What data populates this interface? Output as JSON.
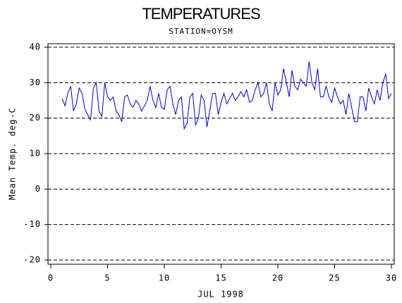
{
  "chart_data": {
    "type": "line",
    "title": "TEMPERATURES",
    "subtitle": "STATION=OYSM",
    "xlabel": "JUL 1998",
    "ylabel": "Mean Temp. deg-C",
    "xlim": [
      -0.25,
      30.25
    ],
    "xticks": [
      0,
      5,
      10,
      15,
      20,
      25,
      30
    ],
    "ylim": [
      -21.2,
      41
    ],
    "yticks": [
      -20,
      -10,
      0,
      10,
      20,
      30,
      40
    ],
    "grid": true,
    "x": [
      1,
      1.25,
      1.5,
      1.75,
      2,
      2.25,
      2.5,
      2.75,
      3,
      3.25,
      3.5,
      3.75,
      4,
      4.25,
      4.5,
      4.75,
      5,
      5.25,
      5.5,
      5.75,
      6,
      6.25,
      6.5,
      6.75,
      7,
      7.25,
      7.5,
      7.75,
      8,
      8.25,
      8.5,
      8.75,
      9,
      9.25,
      9.5,
      9.75,
      10,
      10.25,
      10.5,
      10.75,
      11,
      11.25,
      11.5,
      11.75,
      12,
      12.25,
      12.5,
      12.75,
      13,
      13.25,
      13.5,
      13.75,
      14,
      14.25,
      14.5,
      14.75,
      15,
      15.25,
      15.5,
      15.75,
      16,
      16.25,
      16.5,
      16.75,
      17,
      17.25,
      17.5,
      17.75,
      18,
      18.25,
      18.5,
      18.75,
      19,
      19.25,
      19.5,
      19.75,
      20,
      20.25,
      20.5,
      20.75,
      21,
      21.25,
      21.5,
      21.75,
      22,
      22.25,
      22.5,
      22.75,
      23,
      23.25,
      23.5,
      23.75,
      24,
      24.25,
      24.5,
      24.75,
      25,
      25.25,
      25.5,
      25.75,
      26,
      26.25,
      26.5,
      26.75,
      27,
      27.25,
      27.5,
      27.75,
      28,
      28.25,
      28.5,
      28.75,
      29,
      29.25,
      29.5,
      29.75,
      30
    ],
    "series": [
      {
        "name": "Mean Temp",
        "color": "#0000cc",
        "values": [
          25.5,
          23.5,
          27,
          29,
          22,
          24,
          28.5,
          27,
          22.5,
          21,
          19.5,
          28.5,
          30,
          22,
          20.5,
          30,
          26,
          25,
          26,
          22,
          21,
          19,
          26,
          26.5,
          24,
          23,
          25,
          24,
          22,
          23.5,
          25,
          29,
          25,
          23,
          27,
          23,
          22.5,
          28,
          29,
          24,
          21,
          25,
          26,
          17,
          18.5,
          26,
          27,
          18,
          20,
          26.5,
          25,
          17.5,
          22,
          27,
          27,
          21,
          24.5,
          27,
          24,
          25.5,
          27,
          25,
          26,
          27.5,
          26,
          28,
          24.5,
          25,
          28,
          30,
          26,
          27,
          30,
          24,
          22,
          30,
          26.5,
          28,
          34,
          30,
          26,
          33.5,
          29,
          28,
          31,
          30,
          29,
          36,
          30,
          28,
          34,
          26,
          26,
          29,
          26,
          24.5,
          28.5,
          26,
          24,
          25,
          21,
          27,
          23,
          19,
          19,
          26,
          26,
          22,
          28.5,
          26,
          24,
          28,
          25,
          30,
          32.5,
          25.5,
          27
        ]
      }
    ]
  }
}
